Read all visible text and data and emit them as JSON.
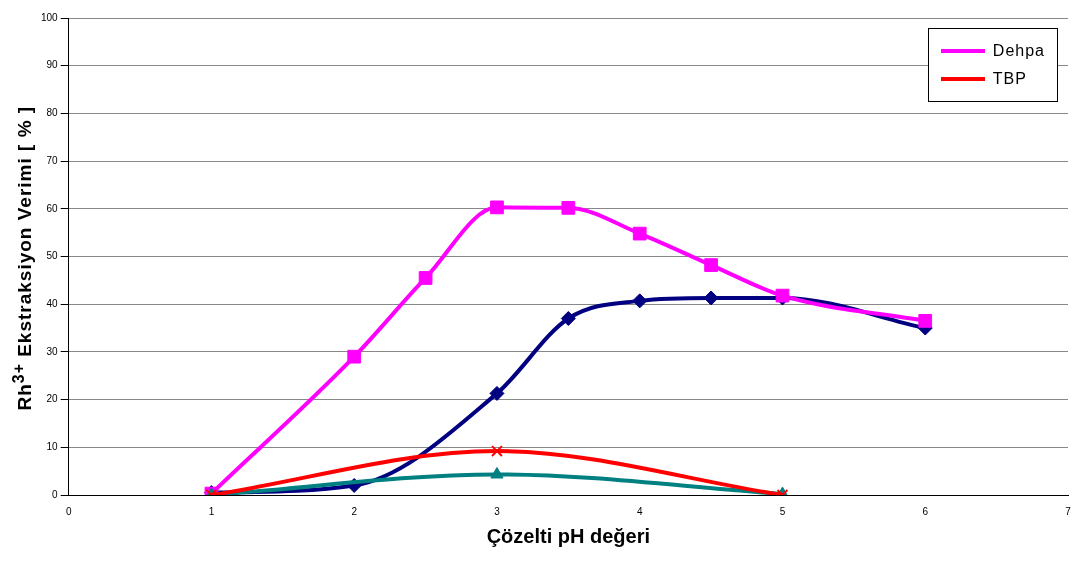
{
  "chart_data": {
    "type": "line",
    "xlabel": "Çözelti pH değeri",
    "ylabel": "Rh$^{3+}$ Ekstraksiyon Verimi [ % ]",
    "xlim": [
      0,
      7
    ],
    "xticks": [
      0,
      1,
      2,
      3,
      4,
      5,
      6,
      7
    ],
    "ylim": [
      0,
      100
    ],
    "yticks": [
      0,
      10,
      20,
      30,
      40,
      50,
      60,
      70,
      80,
      90,
      100
    ],
    "grid": "y",
    "legend": "top right",
    "series": [
      {
        "color": "#000080",
        "marker": "diamond",
        "x": [
          1,
          2,
          3,
          3.5,
          4,
          4.5,
          5,
          6
        ],
        "values": [
          0.5,
          2,
          21.3,
          37,
          40.7,
          41.3,
          41.3,
          35
        ]
      },
      {
        "name": "Dehpa",
        "color": "#ff00ff",
        "marker": "square",
        "x": [
          1,
          2,
          2.5,
          3,
          3.5,
          4,
          4.5,
          5,
          6
        ],
        "values": [
          0.3,
          29,
          45.5,
          60.3,
          60.2,
          54.8,
          48.2,
          41.8,
          36.5
        ]
      },
      {
        "color": "#008080",
        "marker": "triangle",
        "x": [
          1,
          3,
          5
        ],
        "values": [
          0,
          4.3,
          0.2
        ]
      },
      {
        "name": "TBP",
        "color": "#ff0000",
        "marker": "cross",
        "x": [
          1,
          3,
          5
        ],
        "values": [
          0,
          9.2,
          0
        ]
      }
    ]
  }
}
